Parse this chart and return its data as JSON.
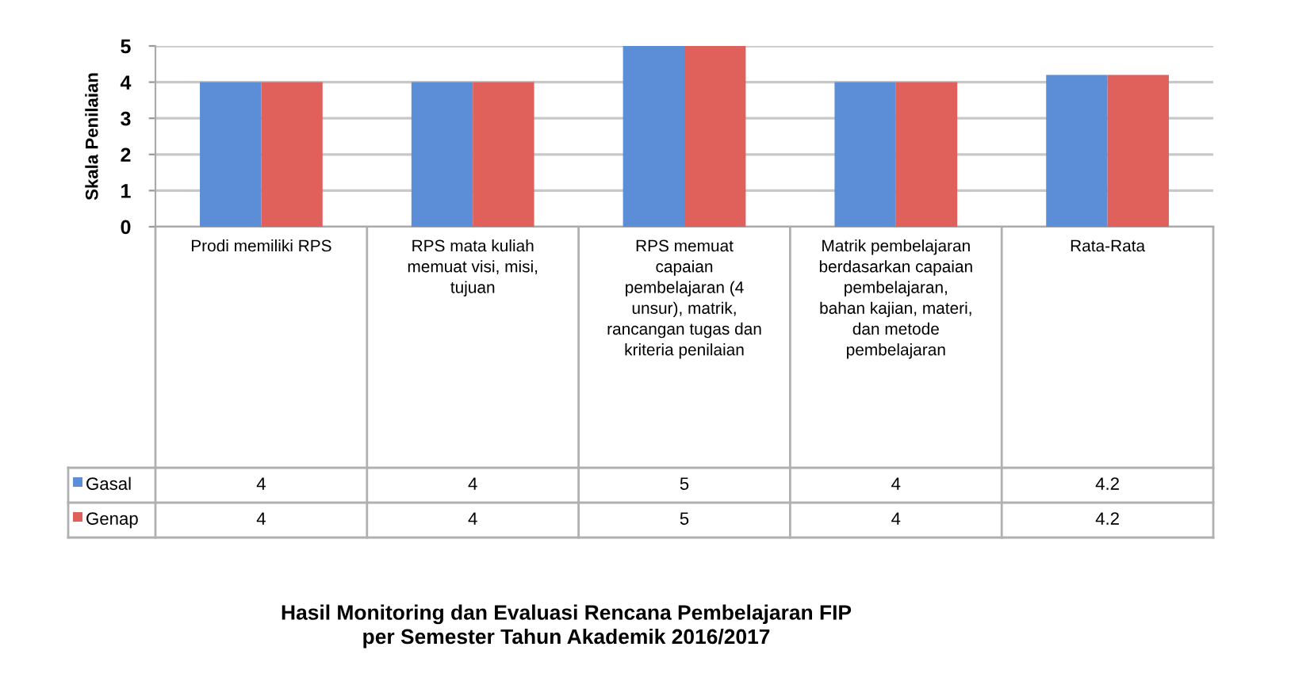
{
  "chart_data": {
    "type": "bar",
    "title": "Hasil Monitoring dan Evaluasi Rencana Pembelajaran FIP\nper Semester Tahun Akademik 2016/2017",
    "ylabel": "Skala Penilaian",
    "categories": [
      "Prodi memiliki RPS",
      "RPS mata kuliah memuat visi, misi, tujuan",
      "RPS memuat capaian pembelajaran (4 unsur), matrik, rancangan tugas dan kriteria penilaian",
      "Matrik pembelajaran berdasarkan capaian pembelajaran, bahan kajian, materi, dan metode pembelajaran",
      "Rata-Rata"
    ],
    "series": [
      {
        "name": "Gasal",
        "color": "#5b8ed6",
        "values": [
          4,
          4,
          5,
          4,
          4.2
        ]
      },
      {
        "name": "Genap",
        "color": "#e0605c",
        "values": [
          4,
          4,
          5,
          4,
          4.2
        ]
      }
    ],
    "ylim": [
      0,
      5
    ],
    "yticks": [
      0,
      1,
      2,
      3,
      4,
      5
    ],
    "grid": "y",
    "legend": "bottom left",
    "data_labels": true
  }
}
